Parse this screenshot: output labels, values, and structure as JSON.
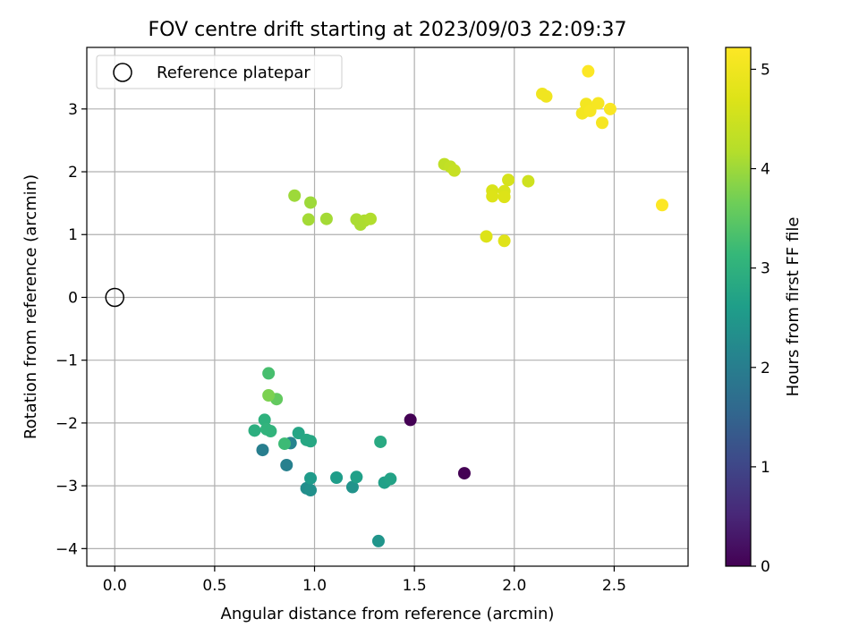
{
  "chart_data": {
    "type": "scatter",
    "title": "FOV centre drift starting at 2023/09/03 22:09:37",
    "xlabel": "Angular distance from reference (arcmin)",
    "ylabel": "Rotation from reference (arcmin)",
    "xlim": [
      -0.14,
      2.87
    ],
    "ylim": [
      -4.28,
      3.98
    ],
    "xticks": [
      0.0,
      0.5,
      1.0,
      1.5,
      2.0,
      2.5
    ],
    "xtick_labels": [
      "0.0",
      "0.5",
      "1.0",
      "1.5",
      "2.0",
      "2.5"
    ],
    "yticks": [
      -4,
      -3,
      -2,
      -1,
      0,
      1,
      2,
      3
    ],
    "ytick_labels": [
      "−4",
      "−3",
      "−2",
      "−1",
      "0",
      "1",
      "2",
      "3"
    ],
    "grid": true,
    "legend": {
      "location": "upper left",
      "entries": [
        "Reference platepar"
      ]
    },
    "reference_point": {
      "x": 0.0,
      "y": 0.0,
      "marker": "open-circle"
    },
    "colorbar": {
      "label": "Hours from first FF file",
      "colormap": "viridis",
      "range": [
        0,
        5.22
      ],
      "ticks": [
        0,
        1,
        2,
        3,
        4,
        5
      ],
      "tick_labels": [
        "0",
        "1",
        "2",
        "3",
        "4",
        "5"
      ]
    },
    "points": [
      {
        "x": 1.48,
        "y": -1.95,
        "c": 0.0
      },
      {
        "x": 1.75,
        "y": -2.8,
        "c": 0.0
      },
      {
        "x": 0.74,
        "y": -2.43,
        "c": 2.0
      },
      {
        "x": 0.86,
        "y": -2.67,
        "c": 2.05
      },
      {
        "x": 0.88,
        "y": -2.32,
        "c": 2.1
      },
      {
        "x": 0.96,
        "y": -3.04,
        "c": 2.3
      },
      {
        "x": 0.98,
        "y": -3.07,
        "c": 2.35
      },
      {
        "x": 1.19,
        "y": -3.02,
        "c": 2.4
      },
      {
        "x": 1.32,
        "y": -3.88,
        "c": 2.45
      },
      {
        "x": 0.98,
        "y": -2.88,
        "c": 2.55
      },
      {
        "x": 1.11,
        "y": -2.87,
        "c": 2.6
      },
      {
        "x": 1.21,
        "y": -2.86,
        "c": 2.65
      },
      {
        "x": 1.35,
        "y": -2.95,
        "c": 2.65
      },
      {
        "x": 1.38,
        "y": -2.89,
        "c": 2.7
      },
      {
        "x": 0.92,
        "y": -2.16,
        "c": 2.75
      },
      {
        "x": 0.96,
        "y": -2.27,
        "c": 2.8
      },
      {
        "x": 0.98,
        "y": -2.29,
        "c": 2.8
      },
      {
        "x": 1.33,
        "y": -2.3,
        "c": 2.85
      },
      {
        "x": 0.7,
        "y": -2.12,
        "c": 2.95
      },
      {
        "x": 0.75,
        "y": -1.95,
        "c": 3.0
      },
      {
        "x": 0.76,
        "y": -2.1,
        "c": 3.05
      },
      {
        "x": 0.78,
        "y": -2.13,
        "c": 3.05
      },
      {
        "x": 0.85,
        "y": -2.33,
        "c": 3.2
      },
      {
        "x": 0.77,
        "y": -1.21,
        "c": 3.3
      },
      {
        "x": 0.81,
        "y": -1.62,
        "c": 3.55
      },
      {
        "x": 0.77,
        "y": -1.56,
        "c": 3.75
      },
      {
        "x": 0.9,
        "y": 1.62,
        "c": 4.0
      },
      {
        "x": 0.98,
        "y": 1.51,
        "c": 4.0
      },
      {
        "x": 0.97,
        "y": 1.24,
        "c": 4.05
      },
      {
        "x": 1.06,
        "y": 1.25,
        "c": 4.05
      },
      {
        "x": 1.21,
        "y": 1.24,
        "c": 4.1
      },
      {
        "x": 1.23,
        "y": 1.16,
        "c": 4.1
      },
      {
        "x": 1.25,
        "y": 1.22,
        "c": 4.12
      },
      {
        "x": 1.28,
        "y": 1.25,
        "c": 4.15
      },
      {
        "x": 1.65,
        "y": 2.12,
        "c": 4.3
      },
      {
        "x": 1.68,
        "y": 2.08,
        "c": 4.35
      },
      {
        "x": 1.7,
        "y": 2.02,
        "c": 4.4
      },
      {
        "x": 2.07,
        "y": 1.85,
        "c": 4.5
      },
      {
        "x": 1.97,
        "y": 1.87,
        "c": 4.6
      },
      {
        "x": 1.89,
        "y": 1.7,
        "c": 4.65
      },
      {
        "x": 1.95,
        "y": 1.69,
        "c": 4.65
      },
      {
        "x": 1.89,
        "y": 1.61,
        "c": 4.7
      },
      {
        "x": 1.95,
        "y": 1.6,
        "c": 4.7
      },
      {
        "x": 1.86,
        "y": 0.97,
        "c": 4.7
      },
      {
        "x": 1.95,
        "y": 0.9,
        "c": 4.75
      },
      {
        "x": 2.14,
        "y": 3.24,
        "c": 5.0
      },
      {
        "x": 2.16,
        "y": 3.2,
        "c": 5.0
      },
      {
        "x": 2.34,
        "y": 2.93,
        "c": 5.05
      },
      {
        "x": 2.36,
        "y": 2.97,
        "c": 5.05
      },
      {
        "x": 2.36,
        "y": 3.08,
        "c": 5.05
      },
      {
        "x": 2.38,
        "y": 2.97,
        "c": 5.1
      },
      {
        "x": 2.42,
        "y": 3.09,
        "c": 5.1
      },
      {
        "x": 2.44,
        "y": 2.78,
        "c": 5.1
      },
      {
        "x": 2.48,
        "y": 3.0,
        "c": 5.15
      },
      {
        "x": 2.37,
        "y": 3.6,
        "c": 5.2
      },
      {
        "x": 2.74,
        "y": 1.47,
        "c": 5.2
      }
    ]
  }
}
